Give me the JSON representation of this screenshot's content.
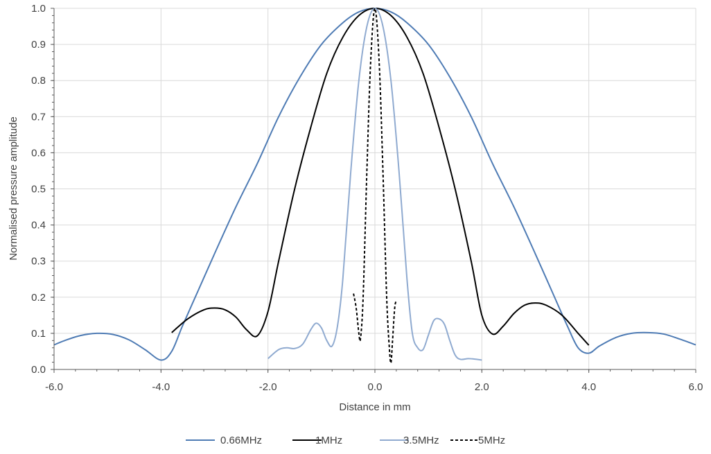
{
  "chart_data": {
    "type": "line",
    "title": "",
    "xlabel": "Distance in mm",
    "ylabel": "Normalised pressure amplitude",
    "xlim": [
      -6,
      6
    ],
    "ylim": [
      0,
      1
    ],
    "x_ticks": [
      "-6.0",
      "-4.0",
      "-2.0",
      "0.0",
      "2.0",
      "4.0",
      "6.0"
    ],
    "y_ticks": [
      "0.0",
      "0.1",
      "0.2",
      "0.3",
      "0.4",
      "0.5",
      "0.6",
      "0.7",
      "0.8",
      "0.9",
      "1.0"
    ],
    "grid": true,
    "legend_position": "bottom",
    "series": [
      {
        "name": "0.66MHz",
        "color": "#4e7bb4",
        "dash": "solid",
        "points": [
          [
            -6.0,
            0.068
          ],
          [
            -5.8,
            0.08
          ],
          [
            -5.5,
            0.094
          ],
          [
            -5.2,
            0.1
          ],
          [
            -4.9,
            0.097
          ],
          [
            -4.6,
            0.082
          ],
          [
            -4.3,
            0.055
          ],
          [
            -4.0,
            0.026
          ],
          [
            -3.8,
            0.05
          ],
          [
            -3.6,
            0.12
          ],
          [
            -3.3,
            0.22
          ],
          [
            -3.0,
            0.32
          ],
          [
            -2.6,
            0.45
          ],
          [
            -2.2,
            0.57
          ],
          [
            -1.8,
            0.7
          ],
          [
            -1.4,
            0.81
          ],
          [
            -1.0,
            0.9
          ],
          [
            -0.6,
            0.96
          ],
          [
            -0.3,
            0.99
          ],
          [
            0.0,
            1.0
          ],
          [
            0.3,
            0.99
          ],
          [
            0.6,
            0.96
          ],
          [
            1.0,
            0.9
          ],
          [
            1.4,
            0.81
          ],
          [
            1.8,
            0.7
          ],
          [
            2.2,
            0.57
          ],
          [
            2.6,
            0.45
          ],
          [
            3.0,
            0.32
          ],
          [
            3.3,
            0.22
          ],
          [
            3.6,
            0.12
          ],
          [
            3.8,
            0.06
          ],
          [
            4.0,
            0.045
          ],
          [
            4.2,
            0.065
          ],
          [
            4.5,
            0.088
          ],
          [
            4.8,
            0.1
          ],
          [
            5.1,
            0.102
          ],
          [
            5.4,
            0.098
          ],
          [
            5.7,
            0.084
          ],
          [
            6.0,
            0.068
          ]
        ]
      },
      {
        "name": "1MHz",
        "color": "#000000",
        "dash": "solid",
        "points": [
          [
            -3.8,
            0.102
          ],
          [
            -3.5,
            0.14
          ],
          [
            -3.2,
            0.165
          ],
          [
            -3.0,
            0.17
          ],
          [
            -2.8,
            0.165
          ],
          [
            -2.6,
            0.145
          ],
          [
            -2.4,
            0.11
          ],
          [
            -2.2,
            0.093
          ],
          [
            -2.0,
            0.16
          ],
          [
            -1.8,
            0.3
          ],
          [
            -1.5,
            0.5
          ],
          [
            -1.2,
            0.67
          ],
          [
            -0.9,
            0.82
          ],
          [
            -0.6,
            0.92
          ],
          [
            -0.3,
            0.98
          ],
          [
            0.0,
            1.0
          ],
          [
            0.3,
            0.98
          ],
          [
            0.6,
            0.92
          ],
          [
            0.9,
            0.82
          ],
          [
            1.2,
            0.67
          ],
          [
            1.5,
            0.5
          ],
          [
            1.8,
            0.3
          ],
          [
            2.0,
            0.15
          ],
          [
            2.2,
            0.098
          ],
          [
            2.4,
            0.12
          ],
          [
            2.6,
            0.155
          ],
          [
            2.8,
            0.178
          ],
          [
            3.0,
            0.184
          ],
          [
            3.2,
            0.178
          ],
          [
            3.5,
            0.15
          ],
          [
            3.8,
            0.1
          ],
          [
            4.0,
            0.067
          ]
        ]
      },
      {
        "name": "3.5MHz",
        "color": "#8faad0",
        "dash": "solid",
        "points": [
          [
            -2.0,
            0.03
          ],
          [
            -1.8,
            0.055
          ],
          [
            -1.65,
            0.06
          ],
          [
            -1.5,
            0.058
          ],
          [
            -1.35,
            0.07
          ],
          [
            -1.2,
            0.11
          ],
          [
            -1.1,
            0.128
          ],
          [
            -1.0,
            0.115
          ],
          [
            -0.9,
            0.08
          ],
          [
            -0.8,
            0.065
          ],
          [
            -0.7,
            0.12
          ],
          [
            -0.6,
            0.25
          ],
          [
            -0.45,
            0.55
          ],
          [
            -0.3,
            0.8
          ],
          [
            -0.15,
            0.95
          ],
          [
            0.0,
            1.0
          ],
          [
            0.15,
            0.95
          ],
          [
            0.3,
            0.8
          ],
          [
            0.45,
            0.55
          ],
          [
            0.6,
            0.25
          ],
          [
            0.7,
            0.1
          ],
          [
            0.8,
            0.06
          ],
          [
            0.9,
            0.055
          ],
          [
            1.0,
            0.095
          ],
          [
            1.1,
            0.135
          ],
          [
            1.2,
            0.14
          ],
          [
            1.3,
            0.125
          ],
          [
            1.4,
            0.08
          ],
          [
            1.5,
            0.04
          ],
          [
            1.6,
            0.028
          ],
          [
            1.75,
            0.03
          ],
          [
            1.9,
            0.028
          ],
          [
            2.0,
            0.026
          ]
        ]
      },
      {
        "name": "5MHz",
        "color": "#000000",
        "dash": "dashed",
        "points": [
          [
            -0.4,
            0.21
          ],
          [
            -0.35,
            0.17
          ],
          [
            -0.3,
            0.1
          ],
          [
            -0.27,
            0.085
          ],
          [
            -0.22,
            0.2
          ],
          [
            -0.15,
            0.55
          ],
          [
            -0.08,
            0.85
          ],
          [
            0.0,
            1.0
          ],
          [
            0.08,
            0.85
          ],
          [
            0.15,
            0.55
          ],
          [
            0.22,
            0.2
          ],
          [
            0.27,
            0.06
          ],
          [
            0.3,
            0.018
          ],
          [
            0.33,
            0.08
          ],
          [
            0.37,
            0.17
          ],
          [
            0.4,
            0.19
          ]
        ]
      }
    ]
  }
}
